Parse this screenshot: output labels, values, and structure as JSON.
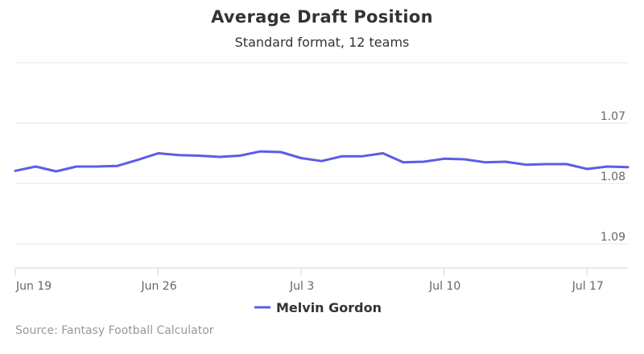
{
  "title": "Average Draft Position",
  "subtitle": "Standard format, 12 teams",
  "source": "Source: Fantasy Football Calculator",
  "colors": {
    "series": "#5b5de8",
    "grid": "#e6e6e6",
    "axis": "#ccd6eb",
    "text": "#666666"
  },
  "chart_data": {
    "type": "line",
    "title": "Average Draft Position",
    "subtitle": "Standard format, 12 teams",
    "xlabel": "",
    "ylabel": "",
    "y_reversed": true,
    "ylim": [
      1.06,
      1.094
    ],
    "y_ticks": [
      {
        "value": 1.07,
        "label": "1.07"
      },
      {
        "value": 1.08,
        "label": "1.08"
      },
      {
        "value": 1.09,
        "label": "1.09"
      }
    ],
    "x_range": [
      "2017-06-19",
      "2017-07-19"
    ],
    "x_ticks": [
      {
        "date": "2017-06-19",
        "label": "Jun 19"
      },
      {
        "date": "2017-06-26",
        "label": "Jun 26"
      },
      {
        "date": "2017-07-03",
        "label": "Jul 3"
      },
      {
        "date": "2017-07-10",
        "label": "Jul 10"
      },
      {
        "date": "2017-07-17",
        "label": "Jul 17"
      }
    ],
    "grid": true,
    "legend_position": "bottom-center",
    "series": [
      {
        "name": "Melvin Gordon",
        "points": [
          [
            "2017-06-19",
            1.0779
          ],
          [
            "2017-06-20",
            1.0772
          ],
          [
            "2017-06-21",
            1.078
          ],
          [
            "2017-06-22",
            1.0772
          ],
          [
            "2017-06-23",
            1.0772
          ],
          [
            "2017-06-24",
            1.0771
          ],
          [
            "2017-06-25",
            1.0761
          ],
          [
            "2017-06-26",
            1.075
          ],
          [
            "2017-06-27",
            1.0753
          ],
          [
            "2017-06-28",
            1.0754
          ],
          [
            "2017-06-29",
            1.0756
          ],
          [
            "2017-06-30",
            1.0754
          ],
          [
            "2017-07-01",
            1.0747
          ],
          [
            "2017-07-02",
            1.0748
          ],
          [
            "2017-07-03",
            1.0758
          ],
          [
            "2017-07-04",
            1.0763
          ],
          [
            "2017-07-05",
            1.0755
          ],
          [
            "2017-07-06",
            1.0755
          ],
          [
            "2017-07-07",
            1.075
          ],
          [
            "2017-07-08",
            1.0765
          ],
          [
            "2017-07-09",
            1.0764
          ],
          [
            "2017-07-10",
            1.0759
          ],
          [
            "2017-07-11",
            1.076
          ],
          [
            "2017-07-12",
            1.0765
          ],
          [
            "2017-07-13",
            1.0764
          ],
          [
            "2017-07-14",
            1.0769
          ],
          [
            "2017-07-15",
            1.0768
          ],
          [
            "2017-07-16",
            1.0768
          ],
          [
            "2017-07-17",
            1.0776
          ],
          [
            "2017-07-18",
            1.0772
          ],
          [
            "2017-07-19",
            1.0773
          ]
        ]
      }
    ]
  }
}
